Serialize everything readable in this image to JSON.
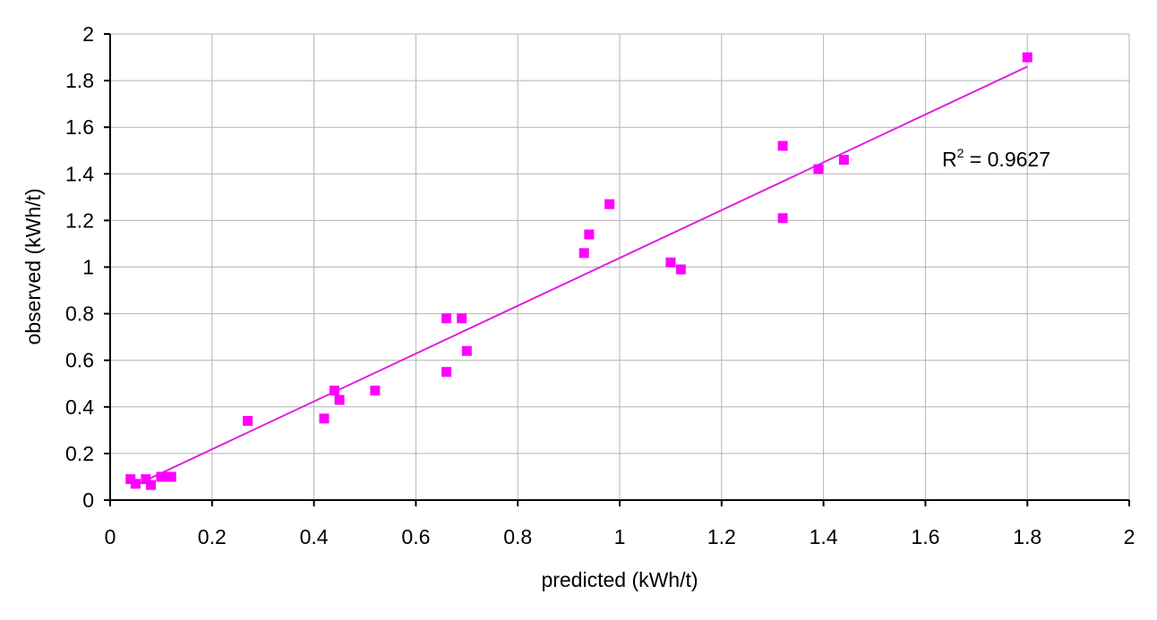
{
  "chart_data": {
    "type": "scatter",
    "title": "",
    "xlabel": "predicted (kWh/t)",
    "ylabel": "observed (kWh/t)",
    "xlim": [
      0,
      2
    ],
    "ylim": [
      0,
      2
    ],
    "xticks": [
      "0",
      "0.2",
      "0.4",
      "0.6",
      "0.8",
      "1",
      "1.2",
      "1.4",
      "1.6",
      "1.8",
      "2"
    ],
    "yticks": [
      "0",
      "0.2",
      "0.4",
      "0.6",
      "0.8",
      "1",
      "1.2",
      "1.4",
      "1.6",
      "1.8",
      "2"
    ],
    "grid": true,
    "marker_color": "#FF00FF",
    "trendline_color": "#E020E0",
    "points": [
      [
        0.04,
        0.09
      ],
      [
        0.05,
        0.07
      ],
      [
        0.07,
        0.09
      ],
      [
        0.08,
        0.065
      ],
      [
        0.1,
        0.1
      ],
      [
        0.11,
        0.1
      ],
      [
        0.12,
        0.1
      ],
      [
        0.27,
        0.34
      ],
      [
        0.42,
        0.35
      ],
      [
        0.44,
        0.47
      ],
      [
        0.45,
        0.43
      ],
      [
        0.52,
        0.47
      ],
      [
        0.66,
        0.78
      ],
      [
        0.66,
        0.55
      ],
      [
        0.69,
        0.78
      ],
      [
        0.7,
        0.64
      ],
      [
        0.93,
        1.06
      ],
      [
        0.94,
        1.14
      ],
      [
        0.98,
        1.27
      ],
      [
        1.1,
        1.02
      ],
      [
        1.12,
        0.99
      ],
      [
        1.32,
        1.52
      ],
      [
        1.32,
        1.21
      ],
      [
        1.39,
        1.42
      ],
      [
        1.44,
        1.46
      ],
      [
        1.8,
        1.9
      ]
    ],
    "trendline": {
      "type": "linear",
      "slope": 1.026,
      "intercept": 0.013,
      "x_range": [
        0.04,
        1.8
      ]
    },
    "annotation": {
      "r2_label": "R",
      "r2_sup": "2",
      "r2_value": " = 0.9627"
    }
  }
}
